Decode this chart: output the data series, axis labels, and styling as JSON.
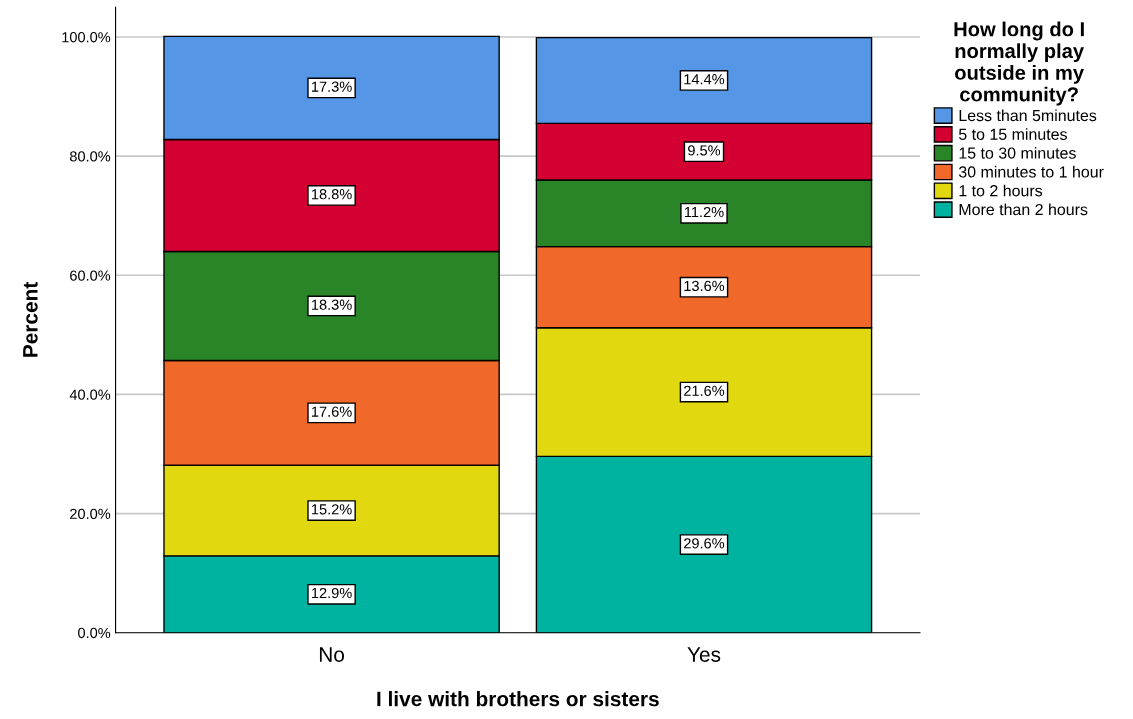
{
  "chart_data": {
    "type": "bar",
    "stacked": true,
    "xlabel": "I live with brothers or sisters",
    "ylabel": "Percent",
    "legend_title": "How long do I\nnormally play\noutside in my\ncommunity?",
    "categories": [
      "No",
      "Yes"
    ],
    "series": [
      {
        "name": "More than 2 hours",
        "color": "#00b2a0",
        "values": [
          12.9,
          29.6
        ],
        "value_labels": [
          "12.9%",
          "29.6%"
        ]
      },
      {
        "name": "1 to 2 hours",
        "color": "#e2d810",
        "values": [
          15.2,
          21.6
        ],
        "value_labels": [
          "15.2%",
          "21.6%"
        ]
      },
      {
        "name": "30 minutes to 1 hour",
        "color": "#f0682a",
        "values": [
          17.6,
          13.6
        ],
        "value_labels": [
          "17.6%",
          "13.6%"
        ]
      },
      {
        "name": "15 to 30 minutes",
        "color": "#2a8428",
        "values": [
          18.3,
          11.2
        ],
        "value_labels": [
          "18.3%",
          "11.2%"
        ]
      },
      {
        "name": "5 to 15 minutes",
        "color": "#d50032",
        "values": [
          18.8,
          9.5
        ],
        "value_labels": [
          "18.8%",
          "9.5%"
        ]
      },
      {
        "name": "Less than 5minutes",
        "color": "#5596e6",
        "values": [
          17.3,
          14.4
        ],
        "value_labels": [
          "17.3%",
          "14.4%"
        ]
      }
    ],
    "ylim": [
      0,
      105
    ],
    "yticks": [
      {
        "value": 0,
        "label": "0.0%"
      },
      {
        "value": 20,
        "label": "20.0%"
      },
      {
        "value": 40,
        "label": "40.0%"
      },
      {
        "value": 60,
        "label": "60.0%"
      },
      {
        "value": 80,
        "label": "80.0%"
      },
      {
        "value": 100,
        "label": "100.0%"
      }
    ],
    "grid": "y",
    "legend": "right"
  }
}
